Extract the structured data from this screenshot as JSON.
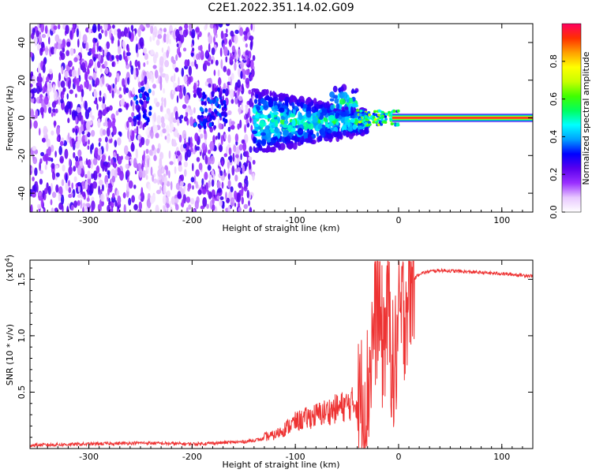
{
  "title": "C2E1.2022.351.14.02.G09",
  "chart_data": [
    {
      "type": "heatmap",
      "xlabel": "Height of straight line (km)",
      "ylabel": "Frequency (Hz)",
      "xlim": [
        -357,
        130
      ],
      "ylim": [
        -50,
        50
      ],
      "x_ticks": [
        -300,
        -200,
        -100,
        0,
        100
      ],
      "x_tick_labels": [
        "-300",
        "-200",
        "-100",
        "0",
        "100"
      ],
      "y_ticks": [
        -40,
        -20,
        0,
        20,
        40
      ],
      "y_tick_labels": [
        "-40",
        "-20",
        "0",
        "20",
        "40"
      ],
      "colorbar": {
        "label": "Normalized spectral amplitude",
        "range": [
          0,
          1
        ],
        "ticks": [
          0.0,
          0.2,
          0.4,
          0.6,
          0.8
        ],
        "tick_labels": [
          "0.0",
          "0.2",
          "0.4",
          "0.6",
          "0.8"
        ],
        "colors": [
          "#ffffff",
          "#e8c8ff",
          "#9a30ff",
          "#5a00ee",
          "#0000ff",
          "#00a0ff",
          "#00ffff",
          "#00ff60",
          "#40ff00",
          "#c8ff00",
          "#ffff00",
          "#ffa000",
          "#ff3000",
          "#ff0060"
        ]
      },
      "features": [
        {
          "name": "",
          "x_range": [
            -357,
            -140
          ],
          "freq_range": [
            -50,
            50
          ],
          "level": 0.12
        },
        {
          "name": "",
          "x_range": [
            -140,
            -40
          ],
          "freq_center": 0,
          "level": 0.25
        },
        {
          "name": "",
          "x_range": [
            0,
            130
          ],
          "freq": 0,
          "level": 0.92
        }
      ]
    },
    {
      "type": "line",
      "xlabel": "Height of straight line (km)",
      "ylabel": "SNR (10 * v/v)",
      "y_scale_label": "(x10",
      "y_scale_exp": "4",
      "y_scale_close": ")",
      "xlim": [
        -357,
        130
      ],
      "ylim": [
        0,
        1.67
      ],
      "x_ticks": [
        -300,
        -200,
        -100,
        0,
        100
      ],
      "x_tick_labels": [
        "-300",
        "-200",
        "-100",
        "0",
        "100"
      ],
      "y_ticks": [
        0.5,
        1.0,
        1.5
      ],
      "y_tick_labels": [
        "0.5",
        "1.0",
        "1.5"
      ],
      "color": "#ee3333",
      "series": [
        {
          "x": [
            -357,
            -300,
            -250,
            -200,
            -150,
            -120,
            -100,
            -80,
            -60,
            -40,
            -30,
            -25,
            -20,
            -15,
            -10,
            -5,
            0,
            5,
            10,
            15,
            20,
            30,
            40,
            60,
            80,
            100,
            130
          ],
          "y": [
            0.03,
            0.04,
            0.05,
            0.04,
            0.06,
            0.1,
            0.2,
            0.25,
            0.3,
            0.35,
            0.5,
            1.0,
            1.3,
            0.9,
            1.3,
            0.6,
            1.1,
            1.2,
            1.45,
            1.5,
            1.55,
            1.57,
            1.58,
            1.57,
            1.56,
            1.55,
            1.53
          ]
        }
      ]
    }
  ]
}
